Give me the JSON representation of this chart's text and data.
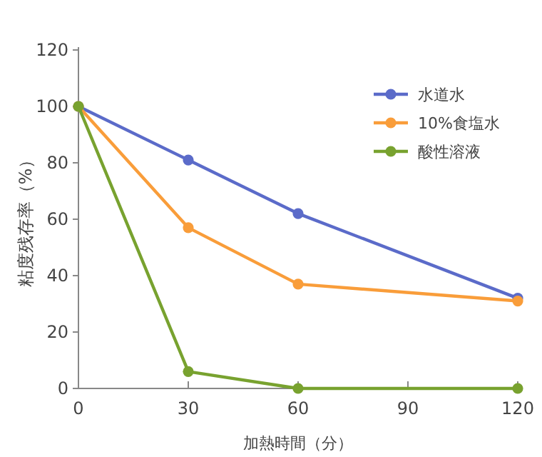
{
  "chart_data": {
    "type": "line",
    "xlabel": "加熱時間（分）",
    "ylabel": "粘度残存率（%）",
    "x": [
      0,
      30,
      60,
      120
    ],
    "series": [
      {
        "name": "水道水",
        "color": "#5b6bc9",
        "values": [
          100,
          81,
          62,
          32
        ]
      },
      {
        "name": "10%食塩水",
        "color": "#f99d3a",
        "values": [
          100,
          57,
          37,
          31
        ]
      },
      {
        "name": "酸性溶液",
        "color": "#78a22f",
        "values": [
          100,
          6,
          0,
          0
        ]
      }
    ],
    "xlim": [
      0,
      120
    ],
    "xticks": [
      0,
      30,
      60,
      90,
      120
    ],
    "ylim": [
      0,
      120
    ],
    "yticks": [
      0,
      20,
      40,
      60,
      80,
      100,
      120
    ],
    "grid": false,
    "legend": "top right",
    "marker": "circle",
    "line_style": "solid"
  }
}
